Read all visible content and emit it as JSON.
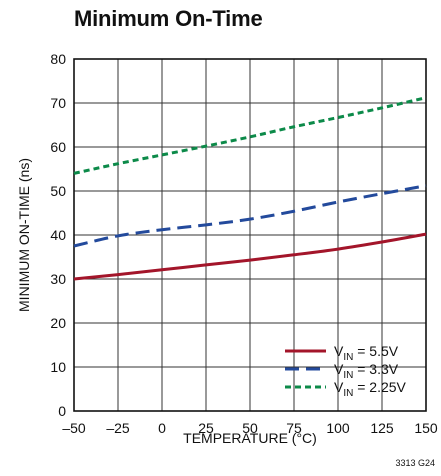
{
  "chart_data": {
    "type": "line",
    "title": "Minimum On-Time",
    "xlabel": "TEMPERATURE (°C)",
    "ylabel": "MINIMUM ON-TIME (ns)",
    "xlim": [
      -50,
      150
    ],
    "ylim": [
      0,
      80
    ],
    "xticks": [
      -50,
      -25,
      0,
      25,
      50,
      75,
      100,
      125,
      150
    ],
    "yticks": [
      0,
      10,
      20,
      30,
      40,
      50,
      60,
      70,
      80
    ],
    "xtick_labels": [
      "–50",
      "–25",
      "0",
      "25",
      "50",
      "75",
      "100",
      "125",
      "150"
    ],
    "ytick_labels": [
      "0",
      "10",
      "20",
      "30",
      "40",
      "50",
      "60",
      "70",
      "80"
    ],
    "grid": true,
    "legend_position": "bottom-right",
    "series": [
      {
        "name_main": "V",
        "name_sub": "IN",
        "name_rest": " = 5.5V",
        "color": "#a3152a",
        "dash": "solid",
        "x": [
          -50,
          -25,
          0,
          25,
          50,
          75,
          100,
          125,
          150
        ],
        "y": [
          30,
          31,
          32.1,
          33.2,
          34.3,
          35.5,
          36.8,
          38.4,
          40.2
        ]
      },
      {
        "name_main": "V",
        "name_sub": "IN",
        "name_rest": " = 3.3V",
        "color": "#234a9c",
        "dash": "long-dash",
        "x": [
          -50,
          -25,
          0,
          25,
          50,
          75,
          100,
          125,
          150
        ],
        "y": [
          37.5,
          39.8,
          41.2,
          42.3,
          43.6,
          45.4,
          47.5,
          49.4,
          51.2
        ]
      },
      {
        "name_main": "V",
        "name_sub": "IN",
        "name_rest": " = 2.25V",
        "color": "#0c8a49",
        "dash": "short-dash",
        "x": [
          -50,
          -25,
          0,
          25,
          50,
          75,
          100,
          125,
          150
        ],
        "y": [
          54,
          56.2,
          58.2,
          60.2,
          62.3,
          64.6,
          66.7,
          68.9,
          71.2
        ]
      }
    ],
    "figure_id": "3313 G24"
  }
}
